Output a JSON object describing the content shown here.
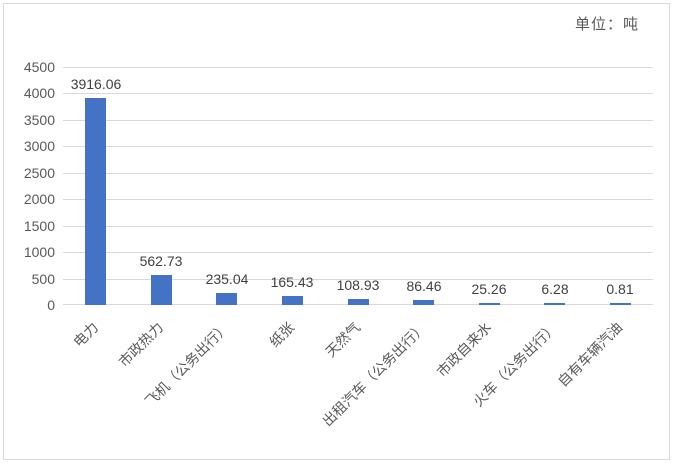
{
  "chart_data": {
    "type": "bar",
    "title": "",
    "unit_label": "单位：吨",
    "categories": [
      "电力",
      "市政热力",
      "飞机（公务出行）",
      "纸张",
      "天然气",
      "出租汽车（公务出行）",
      "市政自来水",
      "火车（公务出行）",
      "自有车辆汽油"
    ],
    "values": [
      3916.06,
      562.73,
      235.04,
      165.43,
      108.93,
      86.46,
      25.26,
      6.28,
      0.81
    ],
    "data_labels": [
      "3916.06",
      "562.73",
      "235.04",
      "165.43",
      "108.93",
      "86.46",
      "25.26",
      "6.28",
      "0.81"
    ],
    "xlabel": "",
    "ylabel": "",
    "ylim": [
      0,
      4500
    ],
    "ytick_step": 500,
    "yticks": [
      0,
      500,
      1000,
      1500,
      2000,
      2500,
      3000,
      3500,
      4000,
      4500
    ],
    "grid": true,
    "legend_position": "none",
    "x_label_rotation_deg": 45,
    "bar_color": "#4472C4",
    "gridline_color": "#D9D9D9",
    "axis_text_color": "#595959",
    "data_label_color": "#404040",
    "frame_border_color": "#D9D9D9",
    "background_color": "#FFFFFF"
  }
}
